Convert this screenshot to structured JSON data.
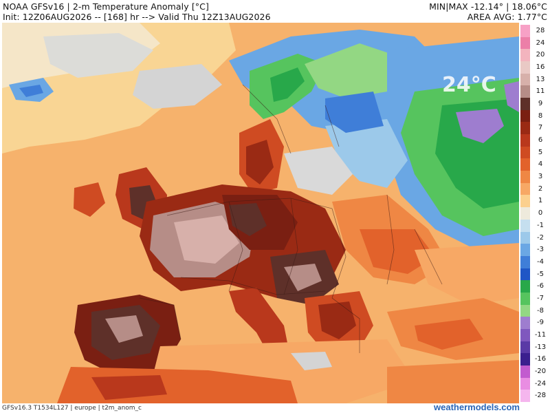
{
  "header": {
    "title": "NOAA GFSv16 | 2-m Temperature Anomaly [°C]",
    "run": "Init: 12Z06AUG2026 -- [168] hr --> Valid Thu 12Z13AUG2026",
    "minmax": "MIN|MAX -12.14° | 18.06°C",
    "area_avg": "AREA AVG: 1.77°C"
  },
  "watermark": "24°C",
  "footer": {
    "model_info": "GFSv16.3 T1534L127 | europe | t2m_anom_c",
    "brand": "weathermodels.com"
  },
  "legend": {
    "labels": [
      "28",
      "24",
      "20",
      "16",
      "13",
      "11",
      "9",
      "8",
      "7",
      "6",
      "5",
      "4",
      "3",
      "2",
      "1",
      "0",
      "-1",
      "-2",
      "-3",
      "-4",
      "-5",
      "-6",
      "-7",
      "-8",
      "-9",
      "-11",
      "-13",
      "-16",
      "-20",
      "-24",
      "-28"
    ],
    "colors": [
      "#f7a1c6",
      "#ec7fa8",
      "#f3b4be",
      "#e9c9c5",
      "#d7b0aa",
      "#b68d87",
      "#5e3029",
      "#7a1f12",
      "#9a2a14",
      "#b9381c",
      "#cf4b22",
      "#e2622b",
      "#ef8744",
      "#f7a865",
      "#fbd08e",
      "#eeeadc",
      "#c5dfef",
      "#9cc9ea",
      "#6aa7e4",
      "#3f7ed8",
      "#1f56c6",
      "#28a84a",
      "#56c45e",
      "#93d783",
      "#9e7dcf",
      "#7f58be",
      "#5a3aa6",
      "#3b1f8e",
      "#c25bcf",
      "#e98de2",
      "#f5b6ee"
    ]
  },
  "colors": {
    "grey_land": "#d4d4d4",
    "header_text": "#111111",
    "brand_blue": "#2a66b8"
  }
}
